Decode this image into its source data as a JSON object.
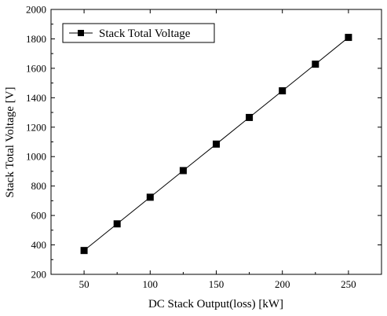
{
  "chart_data": {
    "type": "line",
    "title": "",
    "xlabel": "DC Stack Output(loss) [kW]",
    "ylabel": "Stack Total Voltage [V]",
    "xlim": [
      25,
      275
    ],
    "ylim": [
      200,
      2000
    ],
    "x_ticks": [
      50,
      100,
      150,
      200,
      250
    ],
    "y_ticks": [
      200,
      400,
      600,
      800,
      1000,
      1200,
      1400,
      1600,
      1800,
      2000
    ],
    "grid": false,
    "legend_position": "top-left",
    "series": [
      {
        "name": "Stack Total Voltage",
        "marker": "square",
        "color": "#000000",
        "x": [
          50,
          75,
          100,
          125,
          150,
          175,
          200,
          225,
          250
        ],
        "y": [
          362,
          543,
          724,
          905,
          1085,
          1266,
          1447,
          1628,
          1810
        ]
      }
    ]
  }
}
